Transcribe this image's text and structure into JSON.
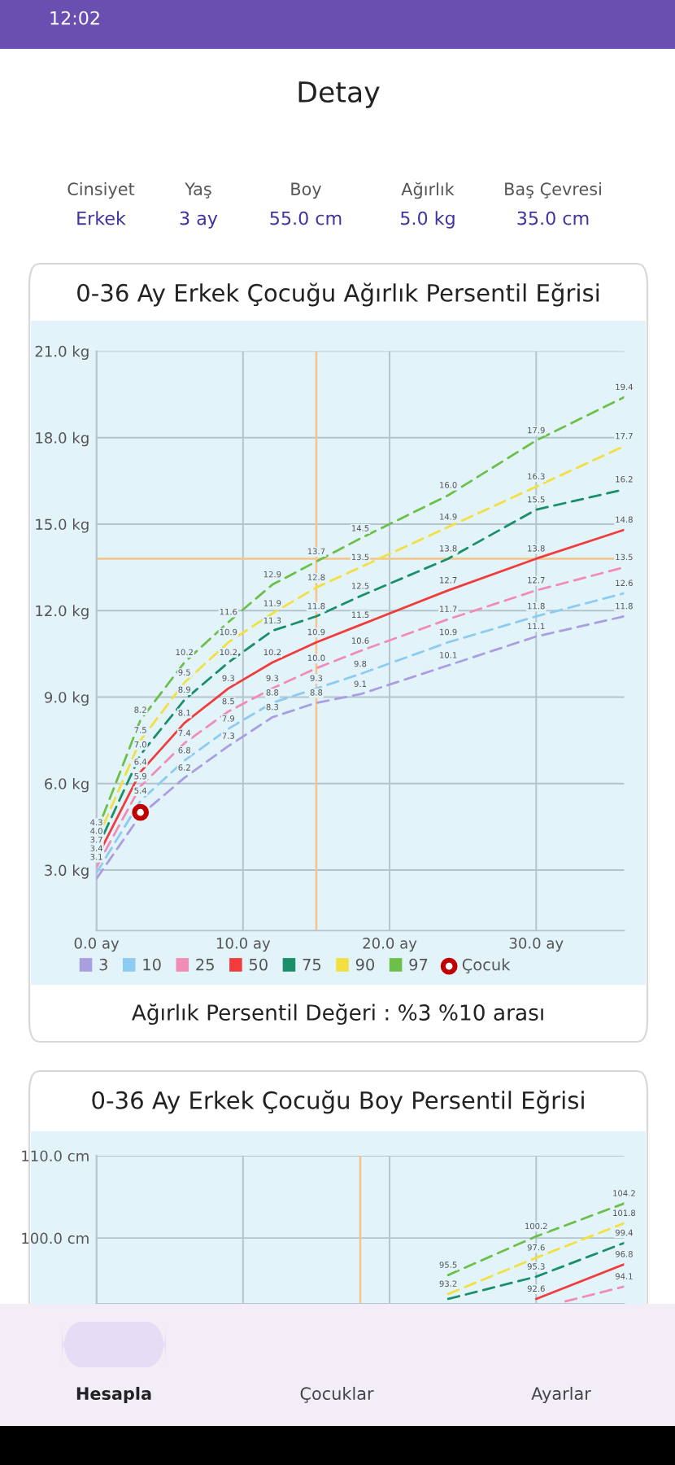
{
  "chart_data": [
    {
      "type": "line",
      "title": "0-36 Ay Erkek Çocuğu Ağırlık Persentil Eğrisi",
      "x": [
        0,
        3,
        6,
        9,
        12,
        15,
        18,
        24,
        30,
        36
      ],
      "xlim": [
        0,
        36
      ],
      "xticks": [
        {
          "value": 0,
          "label": "0.0 ay"
        },
        {
          "value": 10,
          "label": "10.0 ay"
        },
        {
          "value": 20,
          "label": "20.0 ay"
        },
        {
          "value": 30,
          "label": "30.0 ay"
        }
      ],
      "ylim": [
        0.9,
        21
      ],
      "yticks": [
        {
          "value": 3,
          "label": "3.0 kg"
        },
        {
          "value": 6,
          "label": "6.0 kg"
        },
        {
          "value": 9,
          "label": "9.0 kg"
        },
        {
          "value": 12,
          "label": "12.0 kg"
        },
        {
          "value": 15,
          "label": "15.0 kg"
        },
        {
          "value": 18,
          "label": "18.0 kg"
        },
        {
          "value": 21,
          "label": "21.0 kg"
        }
      ],
      "grid": true,
      "legend": "bottom",
      "series": [
        {
          "name": "3",
          "color": "#a99ee0",
          "line_style": "dashed",
          "values": [
            2.7,
            4.9,
            6.2,
            7.3,
            8.3,
            8.8,
            9.1,
            10.1,
            11.1,
            11.8
          ],
          "value_labels": [
            null,
            null,
            "6.2",
            "7.3",
            "8.3",
            "8.8",
            "9.1",
            "10.1",
            "11.1",
            "11.8"
          ]
        },
        {
          "name": "10",
          "color": "#8ecbf0",
          "line_style": "dashed",
          "values": [
            2.9,
            5.4,
            6.8,
            7.9,
            8.8,
            9.3,
            9.8,
            10.9,
            11.8,
            12.6
          ],
          "value_labels": [
            null,
            "5.4",
            "6.8",
            "7.9",
            "8.8",
            "9.3",
            "9.8",
            "10.9",
            "11.8",
            "12.6"
          ]
        },
        {
          "name": "25",
          "color": "#f08cb5",
          "line_style": "dashed",
          "values": [
            3.1,
            5.9,
            7.4,
            8.5,
            9.3,
            10.0,
            10.6,
            11.7,
            12.7,
            13.5
          ],
          "value_labels": [
            "3.1",
            "5.9",
            "7.4",
            "8.5",
            "9.3",
            "10.0",
            "10.6",
            "11.7",
            "12.7",
            "13.5"
          ]
        },
        {
          "name": "50",
          "color": "#f03c3c",
          "line_style": "solid",
          "values": [
            3.4,
            6.4,
            8.1,
            9.3,
            10.2,
            10.9,
            11.5,
            12.7,
            13.8,
            14.8
          ],
          "value_labels": [
            "3.4",
            "6.4",
            "8.1",
            "9.3",
            "10.2",
            "10.9",
            "11.5",
            "12.7",
            "13.8",
            "14.8"
          ]
        },
        {
          "name": "75",
          "color": "#1a8f6a",
          "line_style": "dashed",
          "values": [
            3.7,
            7.0,
            8.9,
            10.2,
            11.3,
            11.8,
            12.5,
            13.8,
            15.5,
            16.2
          ],
          "value_labels": [
            "3.7",
            "7.0",
            "8.9",
            "10.2",
            "11.3",
            "11.8",
            "12.5",
            "13.8",
            "15.5",
            "16.2"
          ]
        },
        {
          "name": "90",
          "color": "#f2e040",
          "line_style": "dashed",
          "values": [
            4.0,
            7.5,
            9.5,
            10.9,
            11.9,
            12.8,
            13.5,
            14.9,
            16.3,
            17.7
          ],
          "value_labels": [
            "4.0",
            "7.5",
            "9.5",
            "10.9",
            "11.9",
            "12.8",
            "13.5",
            "14.9",
            "16.3",
            "17.7"
          ]
        },
        {
          "name": "97",
          "color": "#6cc04a",
          "line_style": "dashed",
          "values": [
            4.3,
            8.2,
            10.2,
            11.6,
            12.9,
            13.7,
            14.5,
            16.0,
            17.9,
            19.4
          ],
          "value_labels": [
            "4.3",
            "8.2",
            "10.2",
            "11.6",
            "12.9",
            "13.7",
            "14.5",
            "16.0",
            "17.9",
            "19.4"
          ]
        },
        {
          "name": "Çocuk",
          "type": "scatter",
          "marker": "circle",
          "color": "#c00000",
          "x": [
            3
          ],
          "values": [
            5.0
          ]
        }
      ],
      "ref_lines": [
        {
          "axis": "x",
          "value": 15,
          "color": "#f5c48a"
        },
        {
          "axis": "y",
          "value": 13.8,
          "color": "#f5c48a"
        }
      ],
      "annotations": [
        "Ağırlık Persentil Değeri : %3 %10 arası",
        "12:02",
        "Detay",
        "Cinsiyet",
        "Erkek",
        "Yaş",
        "3 ay",
        "Boy",
        "55.0 cm",
        "Ağırlık",
        "5.0 kg",
        "Baş Çevresi",
        "35.0 cm",
        "Hesapla",
        "Çocuklar",
        "Ayarlar"
      ]
    },
    {
      "type": "line",
      "title": "0-36 Ay Erkek Çocuğu Boy Persentil Eğrisi",
      "xlim": [
        0,
        36
      ],
      "xticks": [
        {
          "value": 0,
          "label": null
        },
        {
          "value": 10,
          "label": null
        },
        {
          "value": 20,
          "label": null
        },
        {
          "value": 30,
          "label": null
        }
      ],
      "ylim": [
        92,
        110
      ],
      "yticks": [
        {
          "value": 100,
          "label": "100.0 cm"
        },
        {
          "value": 110,
          "label": "110.0 cm"
        }
      ],
      "tick_labels": "y",
      "grid": true,
      "series": [
        {
          "color": "#6cc04a",
          "line_style": "dashed",
          "x": [
            24,
            30,
            36
          ],
          "values": [
            95.5,
            100.2,
            104.2
          ],
          "value_labels": [
            "95.5",
            "100.2",
            "104.2"
          ]
        },
        {
          "color": "#f2e040",
          "line_style": "dashed",
          "x": [
            24,
            30,
            36
          ],
          "values": [
            93.2,
            97.6,
            101.8
          ],
          "value_labels": [
            "93.2",
            "97.6",
            "101.8"
          ]
        },
        {
          "color": "#1a8f6a",
          "line_style": "dashed",
          "x": [
            24,
            30,
            36
          ],
          "values": [
            92.6,
            95.3,
            99.4
          ],
          "value_labels": [
            null,
            "95.3",
            "99.4"
          ]
        },
        {
          "color": "#f03c3c",
          "line_style": "solid",
          "x": [
            30,
            36
          ],
          "values": [
            92.6,
            96.8
          ],
          "value_labels": [
            "92.6",
            "96.8"
          ]
        },
        {
          "color": "#f08cb5",
          "line_style": "dashed",
          "x": [
            32,
            36
          ],
          "values": [
            92.3,
            94.1
          ],
          "value_labels": [
            null,
            "94.1"
          ]
        }
      ],
      "ref_lines": [
        {
          "axis": "x",
          "value": 18,
          "color": "#f5c48a"
        }
      ]
    }
  ]
}
